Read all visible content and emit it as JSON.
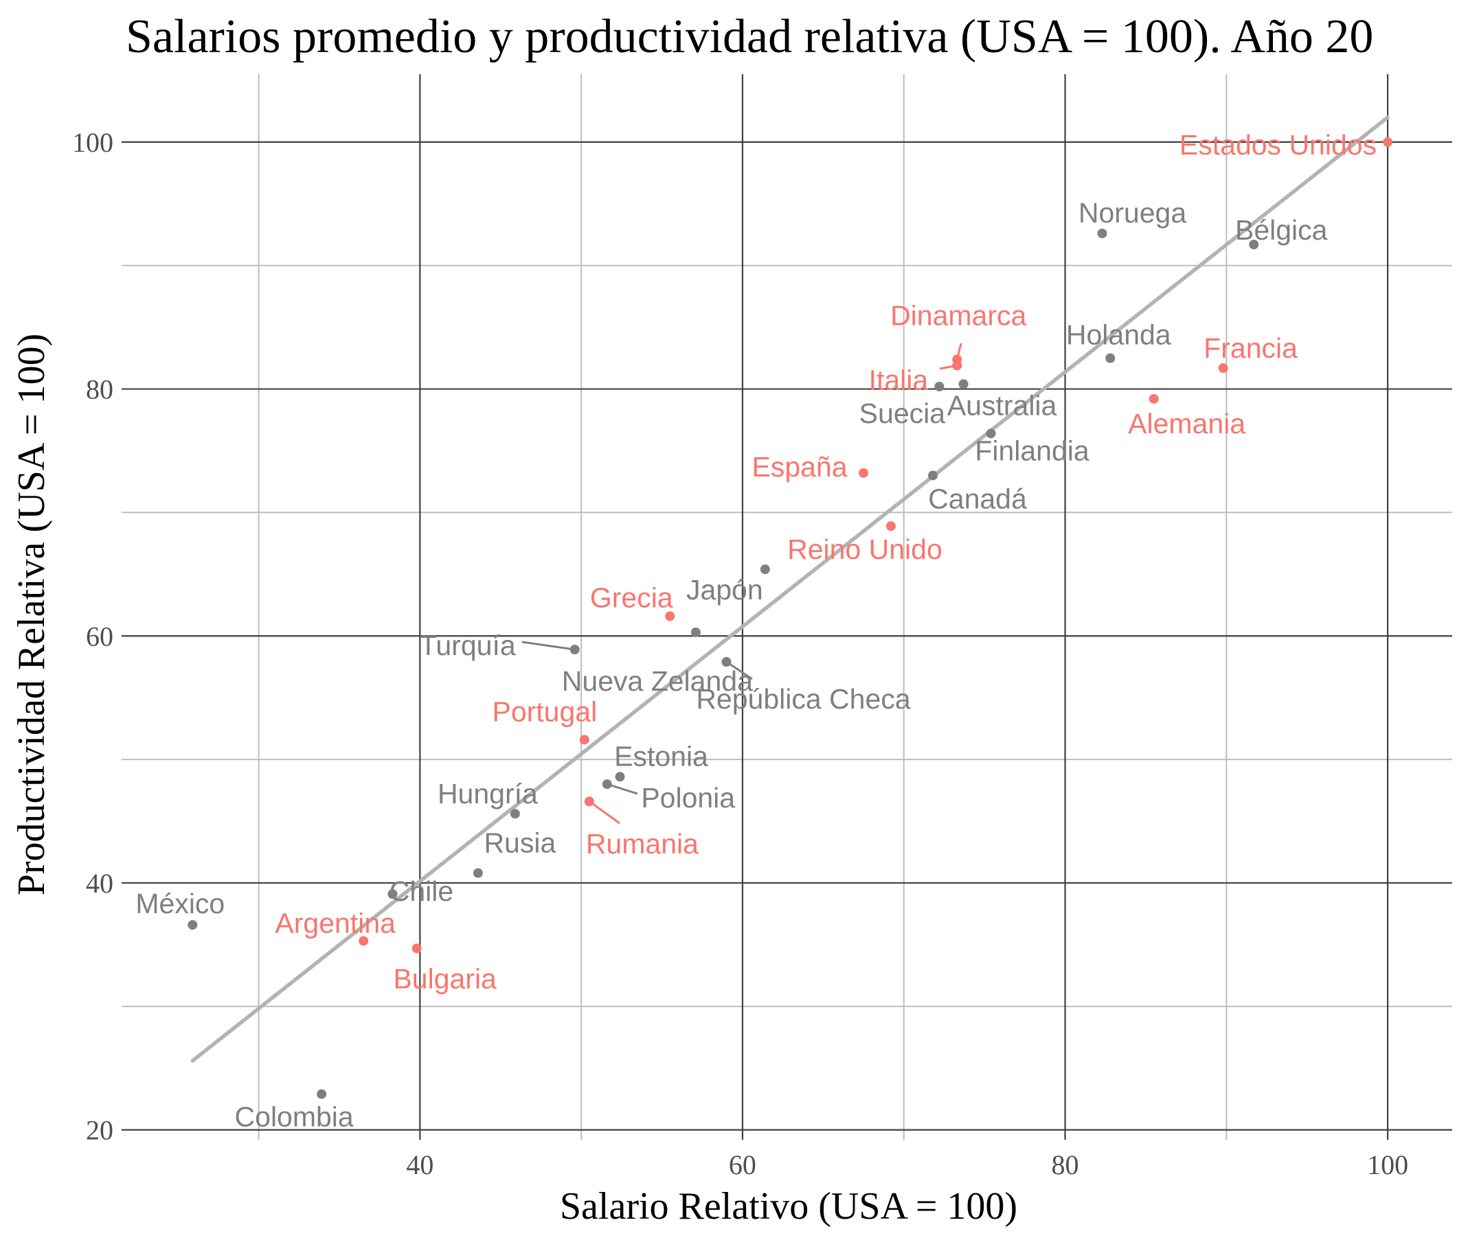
{
  "chart_data": {
    "type": "scatter",
    "title": "Salarios promedio y productividad relativa (USA = 100). Año 20",
    "xlabel": "Salario Relativo (USA = 100)",
    "ylabel": "Productividad Relativa (USA = 100)",
    "xlim": [
      21.5,
      104
    ],
    "ylim": [
      19.2,
      105.5
    ],
    "x_ticks": [
      40,
      60,
      80,
      100
    ],
    "y_ticks": [
      20,
      40,
      60,
      80,
      100
    ],
    "x_minor_ticks": [
      30,
      50,
      70,
      90
    ],
    "y_minor_ticks": [
      30,
      50,
      70,
      90
    ],
    "grid": true,
    "legend": "none",
    "trend_line": {
      "x": [
        25.9,
        100
      ],
      "y": [
        25.6,
        102
      ]
    },
    "colors": {
      "highlight": "#F8766D",
      "default": "#7F7F7F",
      "trend": "#B3B3B3"
    },
    "points": [
      {
        "label": "Estados Unidos",
        "x": 100,
        "y": 100,
        "group": "highlight"
      },
      {
        "label": "Noruega",
        "x": 82.3,
        "y": 92.6,
        "group": "default"
      },
      {
        "label": "Bélgica",
        "x": 91.7,
        "y": 91.7,
        "group": "default"
      },
      {
        "label": "Dinamarca",
        "x": 73.3,
        "y": 82.4,
        "group": "highlight"
      },
      {
        "label": "Italia",
        "x": 73.3,
        "y": 81.9,
        "group": "highlight"
      },
      {
        "label": "Holanda",
        "x": 82.8,
        "y": 82.5,
        "group": "default"
      },
      {
        "label": "Francia",
        "x": 89.8,
        "y": 81.7,
        "group": "highlight"
      },
      {
        "label": "Suecia",
        "x": 72.2,
        "y": 80.2,
        "group": "default"
      },
      {
        "label": "Australia",
        "x": 73.7,
        "y": 80.4,
        "group": "default"
      },
      {
        "label": "Alemania",
        "x": 85.5,
        "y": 79.2,
        "group": "highlight"
      },
      {
        "label": "Finlandia",
        "x": 75.4,
        "y": 76.4,
        "group": "default"
      },
      {
        "label": "España",
        "x": 67.5,
        "y": 73.2,
        "group": "highlight"
      },
      {
        "label": "Canadá",
        "x": 71.8,
        "y": 73.0,
        "group": "default"
      },
      {
        "label": "Reino Unido",
        "x": 69.2,
        "y": 68.9,
        "group": "highlight"
      },
      {
        "label": "Japón",
        "x": 61.4,
        "y": 65.4,
        "group": "default"
      },
      {
        "label": "Grecia",
        "x": 55.5,
        "y": 61.6,
        "group": "highlight"
      },
      {
        "label": "Nueva Zelanda",
        "x": 57.1,
        "y": 60.3,
        "group": "default"
      },
      {
        "label": "Turquía",
        "x": 49.6,
        "y": 58.9,
        "group": "default"
      },
      {
        "label": "República Checa",
        "x": 59.0,
        "y": 57.9,
        "group": "default"
      },
      {
        "label": "Portugal",
        "x": 50.2,
        "y": 51.6,
        "group": "highlight"
      },
      {
        "label": "Estonia",
        "x": 52.4,
        "y": 48.6,
        "group": "default"
      },
      {
        "label": "Polonia",
        "x": 51.6,
        "y": 48.0,
        "group": "default"
      },
      {
        "label": "Hungría",
        "x": 45.9,
        "y": 45.6,
        "group": "default"
      },
      {
        "label": "Rumania",
        "x": 50.5,
        "y": 46.6,
        "group": "highlight"
      },
      {
        "label": "Rusia",
        "x": 43.6,
        "y": 40.8,
        "group": "default"
      },
      {
        "label": "Chile",
        "x": 38.3,
        "y": 39.1,
        "group": "default"
      },
      {
        "label": "México",
        "x": 25.9,
        "y": 36.6,
        "group": "default"
      },
      {
        "label": "Argentina",
        "x": 36.5,
        "y": 35.3,
        "group": "highlight"
      },
      {
        "label": "Bulgaria",
        "x": 39.8,
        "y": 34.7,
        "group": "highlight"
      },
      {
        "label": "Colombia",
        "x": 33.9,
        "y": 22.9,
        "group": "default"
      }
    ]
  }
}
